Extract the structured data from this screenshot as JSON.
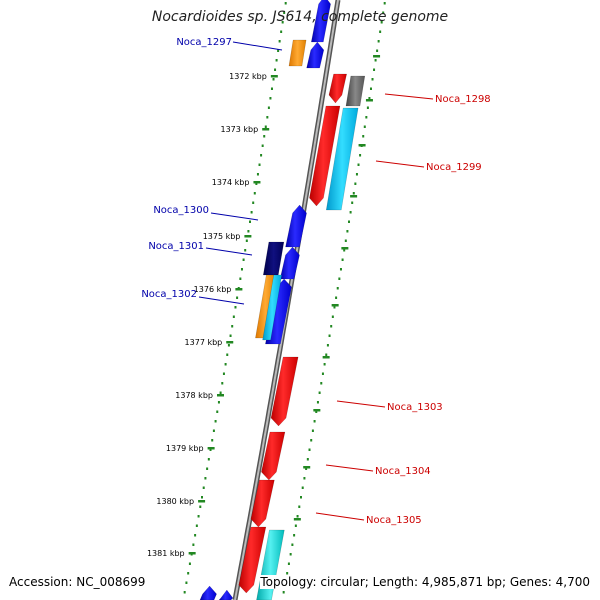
{
  "title": "Nocardioides sp. JS614, complete genome",
  "footer": {
    "accession": "Accession: NC_008699",
    "summary": "Topology: circular; Length: 4,985,871 bp; Genes: 4,700"
  },
  "colors": {
    "forward_label": "#0000aa",
    "reverse_label": "#cc0000",
    "tick": "#228822",
    "backbone": "#888888"
  },
  "kbp_ticks": [
    "1372 kbp",
    "1373 kbp",
    "1374 kbp",
    "1375 kbp",
    "1376 kbp",
    "1377 kbp",
    "1378 kbp",
    "1379 kbp",
    "1380 kbp",
    "1381 kbp"
  ],
  "gene_labels": [
    {
      "name": "Noca_1297",
      "strand": "forward"
    },
    {
      "name": "Noca_1298",
      "strand": "reverse"
    },
    {
      "name": "Noca_1299",
      "strand": "reverse"
    },
    {
      "name": "Noca_1300",
      "strand": "forward"
    },
    {
      "name": "Noca_1301",
      "strand": "forward"
    },
    {
      "name": "Noca_1302",
      "strand": "forward"
    },
    {
      "name": "Noca_1303",
      "strand": "reverse"
    },
    {
      "name": "Noca_1304",
      "strand": "reverse"
    },
    {
      "name": "Noca_1305",
      "strand": "reverse"
    }
  ]
}
